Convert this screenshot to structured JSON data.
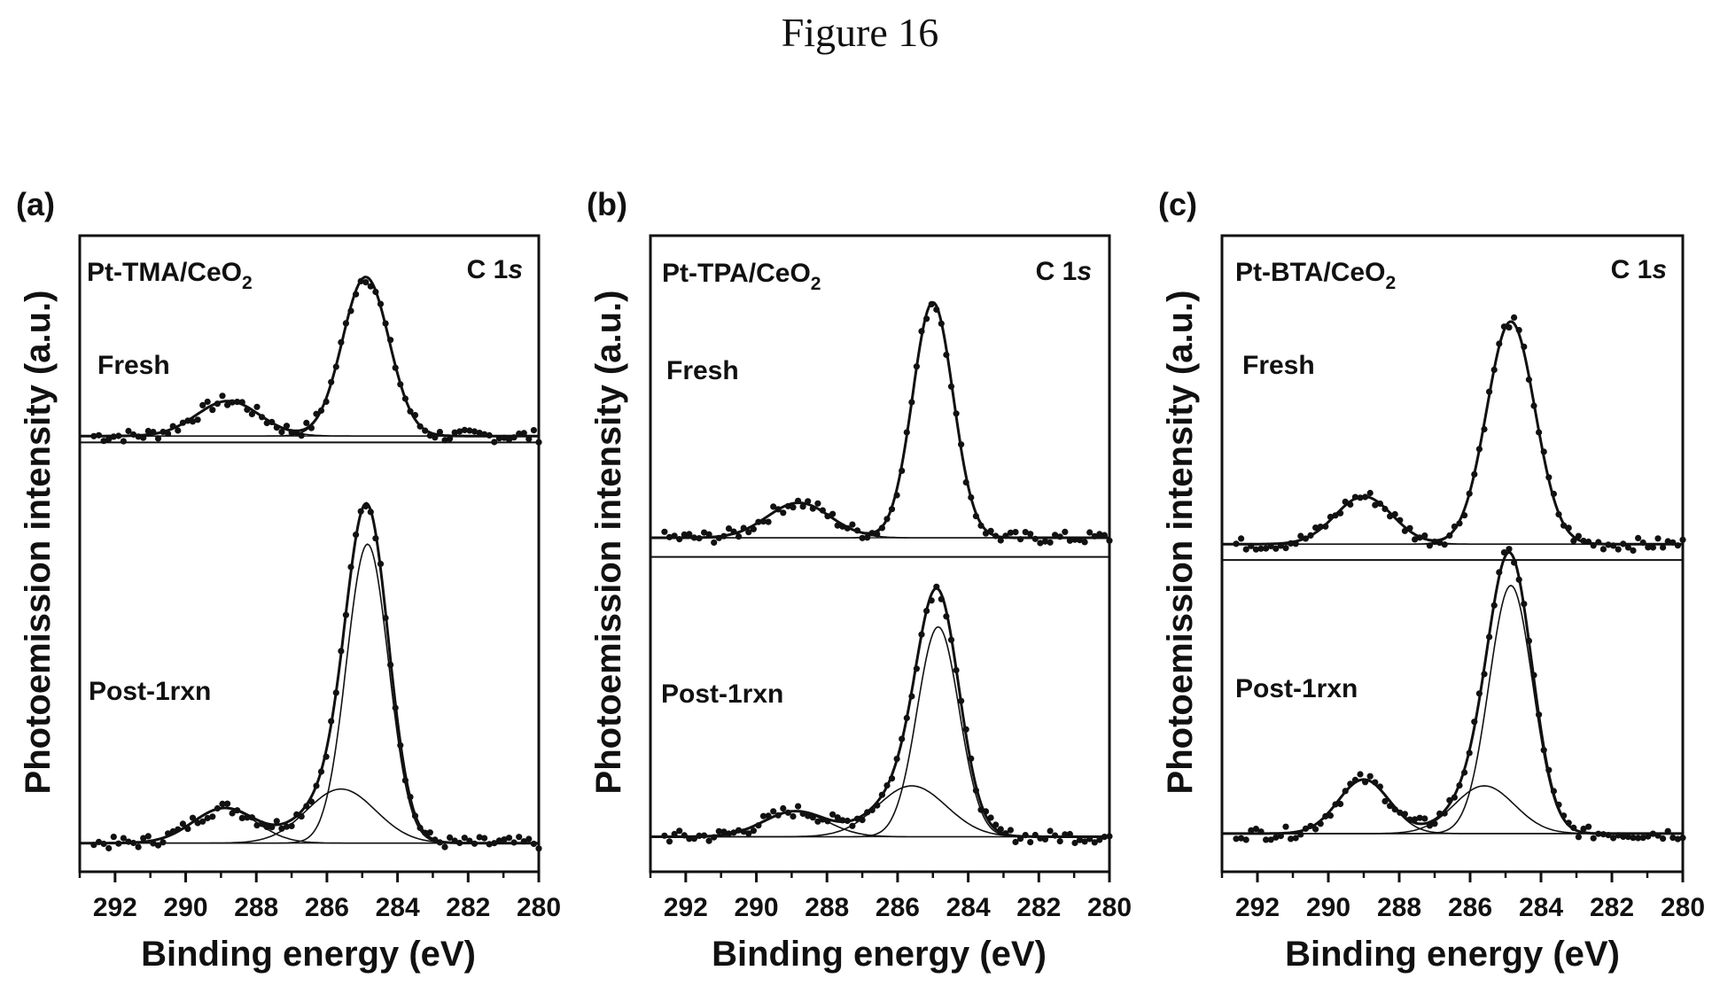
{
  "figure": {
    "title": "Figure 16"
  },
  "chart_data": [
    {
      "type": "line",
      "panel_label": "(a)",
      "sample": "Pt-TMA/CeO",
      "sample_subscript": "2",
      "region_main": "C 1",
      "region_italic": "s",
      "xlabel": "Binding energy (eV)",
      "ylabel": "Photoemission intensity (a.u.)",
      "xlim": [
        293,
        280
      ],
      "ylim": [
        0,
        1
      ],
      "x_ticks": [
        "292",
        "290",
        "288",
        "286",
        "284",
        "282",
        "280"
      ],
      "y_ticks": [],
      "spectra": [
        {
          "name": "Fresh",
          "baseline": 0.685,
          "components": [
            {
              "center": 288.8,
              "height": 0.055,
              "fwhm": 2.1
            },
            {
              "center": 284.9,
              "height": 0.25,
              "fwhm": 1.55
            }
          ]
        },
        {
          "name": "Post-1rxn",
          "baseline": 0.045,
          "components": [
            {
              "center": 288.9,
              "height": 0.055,
              "fwhm": 2.1
            },
            {
              "center": 285.6,
              "height": 0.085,
              "fwhm": 2.3
            },
            {
              "center": 284.85,
              "height": 0.47,
              "fwhm": 1.4
            }
          ]
        }
      ]
    },
    {
      "type": "line",
      "panel_label": "(b)",
      "sample": "Pt-TPA/CeO",
      "sample_subscript": "2",
      "region_main": "C 1",
      "region_italic": "s",
      "xlabel": "Binding energy (eV)",
      "ylabel": "Photoemission intensity (a.u.)",
      "xlim": [
        293,
        280
      ],
      "ylim": [
        0,
        1
      ],
      "x_ticks": [
        "292",
        "290",
        "288",
        "286",
        "284",
        "282",
        "280"
      ],
      "y_ticks": [],
      "spectra": [
        {
          "name": "Fresh",
          "baseline": 0.525,
          "components": [
            {
              "center": 288.8,
              "height": 0.055,
              "fwhm": 2.1
            },
            {
              "center": 285.0,
              "height": 0.37,
              "fwhm": 1.35
            }
          ]
        },
        {
          "name": "Post-1rxn",
          "baseline": 0.055,
          "components": [
            {
              "center": 288.9,
              "height": 0.04,
              "fwhm": 2.1
            },
            {
              "center": 285.6,
              "height": 0.08,
              "fwhm": 2.3
            },
            {
              "center": 284.85,
              "height": 0.33,
              "fwhm": 1.4
            }
          ]
        }
      ]
    },
    {
      "type": "line",
      "panel_label": "(c)",
      "sample": "Pt-BTA/CeO",
      "sample_subscript": "2",
      "region_main": "C 1",
      "region_italic": "s",
      "xlabel": "Binding energy (eV)",
      "ylabel": "Photoemission intensity (a.u.)",
      "xlim": [
        293,
        280
      ],
      "ylim": [
        0,
        1
      ],
      "x_ticks": [
        "292",
        "290",
        "288",
        "286",
        "284",
        "282",
        "280"
      ],
      "y_ticks": [],
      "spectra": [
        {
          "name": "Fresh",
          "baseline": 0.515,
          "components": [
            {
              "center": 289.0,
              "height": 0.075,
              "fwhm": 1.9
            },
            {
              "center": 284.85,
              "height": 0.35,
              "fwhm": 1.6
            }
          ]
        },
        {
          "name": "Post-1rxn",
          "baseline": 0.06,
          "components": [
            {
              "center": 289.0,
              "height": 0.085,
              "fwhm": 1.7
            },
            {
              "center": 285.6,
              "height": 0.075,
              "fwhm": 2.0
            },
            {
              "center": 284.85,
              "height": 0.39,
              "fwhm": 1.45
            }
          ]
        }
      ]
    }
  ]
}
